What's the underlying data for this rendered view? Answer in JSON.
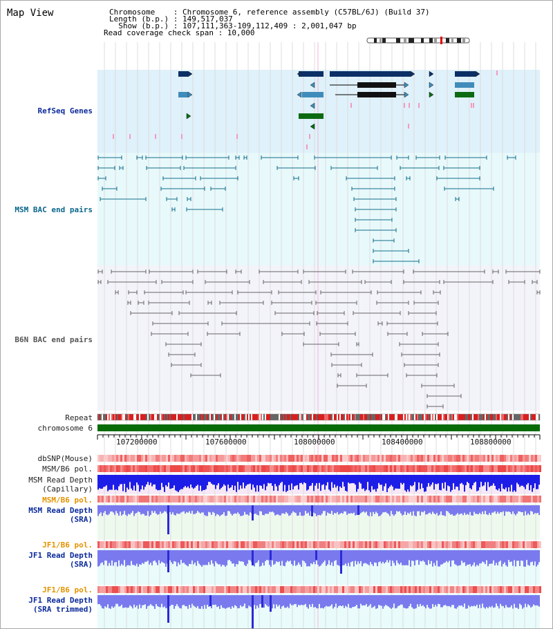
{
  "header": {
    "map_title": "Map View",
    "info_lines": [
      "Chromosome    : Chromosome 6, reference assembly (C57BL/6J) (Build 37)",
      "Length (b.p.) : 149,517,037",
      "  Show (b.p.) : 107,111,363-109,112,409 : 2,001,047 bp",
      "Read coverage check span : 10,000"
    ]
  },
  "tracks": {
    "refseq": "RefSeq Genes",
    "msm_bac": "MSM BAC end pairs",
    "b6n_bac": "B6N BAC end pairs",
    "repeat": "Repeat",
    "chromosome": "chromosome 6",
    "dbsnp": "dbSNP(Mouse)",
    "msm_b6_pol": "MSM/B6 pol.",
    "msm_depth_cap_1": "MSM Read Depth",
    "msm_depth_cap_2": "(Capillary)",
    "msm_b6_pol_sra": "MSM/B6 pol.",
    "msm_depth_sra_1": "MSM Read Depth",
    "msm_depth_sra_2": "(SRA)",
    "jf1_b6_pol": "JF1/B6 pol.",
    "jf1_depth_sra_1": "JF1 Read Depth",
    "jf1_depth_sra_2": "(SRA)",
    "jf1_b6_pol_trim": "JF1/B6 pol.",
    "jf1_depth_trim_1": "JF1 Read Depth",
    "jf1_depth_trim_2": "(SRA trimmed)"
  },
  "axis": {
    "ticks": [
      "107200000",
      "107600000",
      "108000000",
      "108400000",
      "108800000"
    ]
  },
  "colors": {
    "refseq_bg": "#dff1fa",
    "msm_bg": "#e8f9fb",
    "b6n_bg": "#f3f3fa",
    "gene_dark": "#0c2f66",
    "gene_mid": "#3f8cba",
    "gene_green": "#0b6a12",
    "bac_teal": "#0f6d8a",
    "bac_grey": "#666666",
    "chromosome_green": "#076b07",
    "snp_red": "#f07070",
    "depth_blue": "#1d1de8",
    "depth_light": "#7a7aee"
  }
}
